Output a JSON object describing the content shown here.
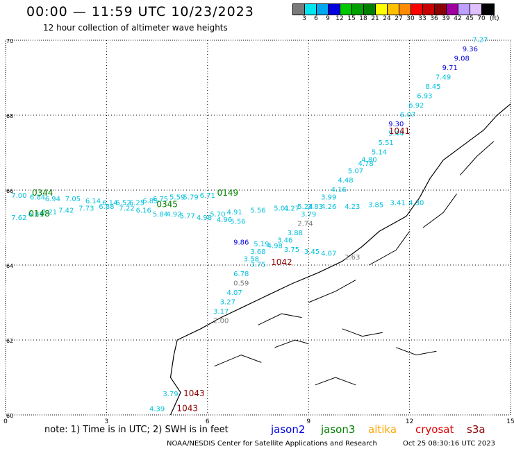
{
  "header": {
    "title": "00:00 — 11:59 UTC 10/23/2023",
    "subtitle": "12 hour collection of altimeter wave heights"
  },
  "legend": {
    "unit": "(ft)",
    "labels": [
      "3",
      "6",
      "9",
      "12",
      "15",
      "18",
      "21",
      "24",
      "27",
      "30",
      "33",
      "36",
      "39",
      "42",
      "45",
      "70"
    ],
    "colors": [
      "#7a7a7a",
      "#00e5ee",
      "#00a8f0",
      "#0000e0",
      "#00c800",
      "#00a000",
      "#008000",
      "#ffff00",
      "#ffc000",
      "#ff8c00",
      "#ff0000",
      "#c80000",
      "#8b0000",
      "#a000a0",
      "#c0a0ff",
      "#e0c0ff",
      "#000000"
    ]
  },
  "axes": {
    "x_ticks": [
      "0",
      "3",
      "6",
      "9",
      "12",
      "15"
    ],
    "y_ticks": [
      "70",
      "68",
      "66",
      "64",
      "62",
      "60"
    ]
  },
  "footer": {
    "note": "note: 1) Time is in UTC; 2) SWH is in feet",
    "satellites": [
      {
        "name": "jason2",
        "color": "#0000e0"
      },
      {
        "name": "jason3",
        "color": "#008000"
      },
      {
        "name": "altika",
        "color": "#ffa500"
      },
      {
        "name": "cryosat",
        "color": "#e00000"
      },
      {
        "name": "s3a",
        "color": "#8b0000"
      }
    ],
    "credit": "NOAA/NESDIS Center for Satellite Applications and Research",
    "timestamp": "Oct 25 08:30:16 UTC 2023"
  },
  "chart_data": {
    "type": "scatter",
    "xlim": [
      0,
      15
    ],
    "ylim": [
      60,
      70
    ],
    "time_labels": [
      {
        "text": "0344",
        "lon": 1.1,
        "lat": 65.85,
        "color": "#008000"
      },
      {
        "text": "0148",
        "lon": 1.0,
        "lat": 65.3,
        "color": "#008000"
      },
      {
        "text": "0345",
        "lon": 4.8,
        "lat": 65.55,
        "color": "#008000"
      },
      {
        "text": "0149",
        "lon": 6.6,
        "lat": 65.85,
        "color": "#008000"
      },
      {
        "text": "1041",
        "lon": 11.7,
        "lat": 67.5,
        "color": "#8b0000"
      },
      {
        "text": "1042",
        "lon": 8.2,
        "lat": 64.0,
        "color": "#8b0000"
      },
      {
        "text": "1043",
        "lon": 5.6,
        "lat": 60.5,
        "color": "#8b0000"
      },
      {
        "text": "1043",
        "lon": 5.4,
        "lat": 60.1,
        "color": "#8b0000"
      }
    ],
    "points": [
      {
        "v": "7.27",
        "lon": 14.1,
        "lat": 69.95,
        "color": "#00c0dd"
      },
      {
        "v": "9.36",
        "lon": 13.8,
        "lat": 69.7,
        "color": "#0000e0"
      },
      {
        "v": "9.08",
        "lon": 13.55,
        "lat": 69.45,
        "color": "#0000e0"
      },
      {
        "v": "9.71",
        "lon": 13.2,
        "lat": 69.2,
        "color": "#0000e0"
      },
      {
        "v": "7.49",
        "lon": 13.0,
        "lat": 68.95,
        "color": "#00c0dd"
      },
      {
        "v": "8.45",
        "lon": 12.7,
        "lat": 68.7,
        "color": "#00c0dd"
      },
      {
        "v": "6.93",
        "lon": 12.45,
        "lat": 68.45,
        "color": "#00c0dd"
      },
      {
        "v": "6.92",
        "lon": 12.2,
        "lat": 68.2,
        "color": "#00c0dd"
      },
      {
        "v": "6.07",
        "lon": 11.95,
        "lat": 67.95,
        "color": "#00c0dd"
      },
      {
        "v": "9.30",
        "lon": 11.6,
        "lat": 67.7,
        "color": "#0000e0"
      },
      {
        "v": "5.44",
        "lon": 11.6,
        "lat": 67.45,
        "color": "#00c0dd"
      },
      {
        "v": "5.51",
        "lon": 11.3,
        "lat": 67.2,
        "color": "#00c0dd"
      },
      {
        "v": "5.14",
        "lon": 11.1,
        "lat": 66.95,
        "color": "#00c0dd"
      },
      {
        "v": "4.80",
        "lon": 10.8,
        "lat": 66.75,
        "color": "#00c0dd"
      },
      {
        "v": "4.78",
        "lon": 10.7,
        "lat": 66.65,
        "color": "#00c0dd"
      },
      {
        "v": "5.07",
        "lon": 10.4,
        "lat": 66.45,
        "color": "#00c0dd"
      },
      {
        "v": "4.48",
        "lon": 10.1,
        "lat": 66.2,
        "color": "#00c0dd"
      },
      {
        "v": "4.16",
        "lon": 9.9,
        "lat": 65.95,
        "color": "#00c0dd"
      },
      {
        "v": "3.99",
        "lon": 9.6,
        "lat": 65.75,
        "color": "#00c0dd"
      },
      {
        "v": "4.23",
        "lon": 10.3,
        "lat": 65.5,
        "color": "#00c0dd"
      },
      {
        "v": "3.85",
        "lon": 11.0,
        "lat": 65.55,
        "color": "#00c0dd"
      },
      {
        "v": "3.41",
        "lon": 11.65,
        "lat": 65.6,
        "color": "#00c0dd"
      },
      {
        "v": "4.30",
        "lon": 12.2,
        "lat": 65.6,
        "color": "#00c0dd"
      },
      {
        "v": "4.26",
        "lon": 9.6,
        "lat": 65.5,
        "color": "#00c0dd"
      },
      {
        "v": "5.24",
        "lon": 8.9,
        "lat": 65.5,
        "color": "#00c0dd"
      },
      {
        "v": "3.83",
        "lon": 9.2,
        "lat": 65.5,
        "color": "#00c0dd"
      },
      {
        "v": "5.01",
        "lon": 8.2,
        "lat": 65.45,
        "color": "#00c0dd"
      },
      {
        "v": "4.27",
        "lon": 8.5,
        "lat": 65.45,
        "color": "#00c0dd"
      },
      {
        "v": "5.56",
        "lon": 7.5,
        "lat": 65.4,
        "color": "#00c0dd"
      },
      {
        "v": "4.91",
        "lon": 6.8,
        "lat": 65.35,
        "color": "#00c0dd"
      },
      {
        "v": "5.70",
        "lon": 6.3,
        "lat": 65.3,
        "color": "#00c0dd"
      },
      {
        "v": "3.79",
        "lon": 9.0,
        "lat": 65.3,
        "color": "#00c0dd"
      },
      {
        "v": "2.74",
        "lon": 8.9,
        "lat": 65.05,
        "color": "#7a7a7a"
      },
      {
        "v": "3.88",
        "lon": 8.6,
        "lat": 64.8,
        "color": "#00c0dd"
      },
      {
        "v": "3.46",
        "lon": 8.3,
        "lat": 64.6,
        "color": "#00c0dd"
      },
      {
        "v": "9.86",
        "lon": 7.0,
        "lat": 64.55,
        "color": "#0000e0"
      },
      {
        "v": "5.19",
        "lon": 7.6,
        "lat": 64.5,
        "color": "#00c0dd"
      },
      {
        "v": "4.98",
        "lon": 8.0,
        "lat": 64.45,
        "color": "#00c0dd"
      },
      {
        "v": "3.75",
        "lon": 8.5,
        "lat": 64.35,
        "color": "#00c0dd"
      },
      {
        "v": "3.45",
        "lon": 9.1,
        "lat": 64.3,
        "color": "#00c0dd"
      },
      {
        "v": "4.07",
        "lon": 9.6,
        "lat": 64.25,
        "color": "#00c0dd"
      },
      {
        "v": "2.63",
        "lon": 10.3,
        "lat": 64.15,
        "color": "#7a7a7a"
      },
      {
        "v": "3.68",
        "lon": 7.5,
        "lat": 64.3,
        "color": "#00c0dd"
      },
      {
        "v": "3.58",
        "lon": 7.3,
        "lat": 64.1,
        "color": "#00c0dd"
      },
      {
        "v": "3.75",
        "lon": 7.5,
        "lat": 63.95,
        "color": "#00c0dd"
      },
      {
        "v": "6.78",
        "lon": 7.0,
        "lat": 63.7,
        "color": "#00c0dd"
      },
      {
        "v": "0.59",
        "lon": 7.0,
        "lat": 63.45,
        "color": "#7a7a7a"
      },
      {
        "v": "4.07",
        "lon": 6.8,
        "lat": 63.2,
        "color": "#00c0dd"
      },
      {
        "v": "3.27",
        "lon": 6.6,
        "lat": 62.95,
        "color": "#00c0dd"
      },
      {
        "v": "3.17",
        "lon": 6.4,
        "lat": 62.7,
        "color": "#00c0dd"
      },
      {
        "v": "2.00",
        "lon": 6.4,
        "lat": 62.45,
        "color": "#7a7a7a"
      },
      {
        "v": "7.00",
        "lon": 0.4,
        "lat": 65.8,
        "color": "#00c0dd"
      },
      {
        "v": "6.84",
        "lon": 0.95,
        "lat": 65.75,
        "color": "#00c0dd"
      },
      {
        "v": "6.94",
        "lon": 1.4,
        "lat": 65.7,
        "color": "#00c0dd"
      },
      {
        "v": "7.05",
        "lon": 2.0,
        "lat": 65.7,
        "color": "#00c0dd"
      },
      {
        "v": "6.14",
        "lon": 2.6,
        "lat": 65.65,
        "color": "#00c0dd"
      },
      {
        "v": "6.14",
        "lon": 3.1,
        "lat": 65.6,
        "color": "#00c0dd"
      },
      {
        "v": "6.52",
        "lon": 3.5,
        "lat": 65.6,
        "color": "#00c0dd"
      },
      {
        "v": "6.25",
        "lon": 3.9,
        "lat": 65.6,
        "color": "#00c0dd"
      },
      {
        "v": "6.85",
        "lon": 4.3,
        "lat": 65.65,
        "color": "#00c0dd"
      },
      {
        "v": "6.75",
        "lon": 4.6,
        "lat": 65.7,
        "color": "#00c0dd"
      },
      {
        "v": "5.59",
        "lon": 5.1,
        "lat": 65.75,
        "color": "#00c0dd"
      },
      {
        "v": "5.79",
        "lon": 5.5,
        "lat": 65.75,
        "color": "#00c0dd"
      },
      {
        "v": "6.71",
        "lon": 6.0,
        "lat": 65.8,
        "color": "#00c0dd"
      },
      {
        "v": "7.62",
        "lon": 0.4,
        "lat": 65.2,
        "color": "#00c0dd"
      },
      {
        "v": "6.81",
        "lon": 0.9,
        "lat": 65.3,
        "color": "#00c0dd"
      },
      {
        "v": "7.21",
        "lon": 1.3,
        "lat": 65.35,
        "color": "#00c0dd"
      },
      {
        "v": "7.42",
        "lon": 1.8,
        "lat": 65.4,
        "color": "#00c0dd"
      },
      {
        "v": "7.73",
        "lon": 2.4,
        "lat": 65.45,
        "color": "#00c0dd"
      },
      {
        "v": "6.88",
        "lon": 3.0,
        "lat": 65.5,
        "color": "#00c0dd"
      },
      {
        "v": "7.22",
        "lon": 3.6,
        "lat": 65.45,
        "color": "#00c0dd"
      },
      {
        "v": "6.16",
        "lon": 4.1,
        "lat": 65.4,
        "color": "#00c0dd"
      },
      {
        "v": "5.84",
        "lon": 4.6,
        "lat": 65.3,
        "color": "#00c0dd"
      },
      {
        "v": "4.92",
        "lon": 5.0,
        "lat": 65.3,
        "color": "#00c0dd"
      },
      {
        "v": "5.77",
        "lon": 5.4,
        "lat": 65.25,
        "color": "#00c0dd"
      },
      {
        "v": "4.98",
        "lon": 5.9,
        "lat": 65.2,
        "color": "#00c0dd"
      },
      {
        "v": "4.96",
        "lon": 6.5,
        "lat": 65.15,
        "color": "#00c0dd"
      },
      {
        "v": "5.56",
        "lon": 6.9,
        "lat": 65.1,
        "color": "#00c0dd"
      },
      {
        "v": "3.79",
        "lon": 4.9,
        "lat": 60.5,
        "color": "#00c0dd"
      },
      {
        "v": "4.39",
        "lon": 4.5,
        "lat": 60.1,
        "color": "#00c0dd"
      }
    ]
  }
}
